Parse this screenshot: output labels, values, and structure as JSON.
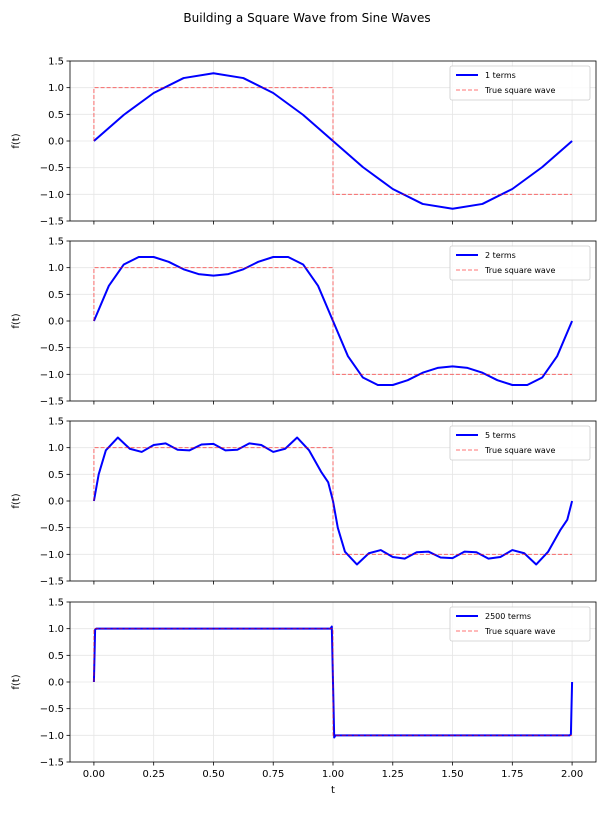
{
  "figure": {
    "title": "Building a Square Wave from Sine Waves"
  },
  "colors": {
    "approximation": "#0000ff",
    "square_wave": "#ff0000",
    "grid": "#e6e6e6",
    "axis": "#000000"
  },
  "chart_data": [
    {
      "type": "line",
      "terms": 1,
      "xlabel": "",
      "ylabel": "f(t)",
      "xlim": [
        -0.1,
        2.1
      ],
      "ylim": [
        -1.5,
        1.5
      ],
      "xticks": [
        0.0,
        0.25,
        0.5,
        0.75,
        1.0,
        1.25,
        1.5,
        1.75,
        2.0
      ],
      "xtick_labels": [
        "",
        "",
        "",
        "",
        "",
        "",
        "",
        "",
        ""
      ],
      "yticks": [
        -1.5,
        -1.0,
        -0.5,
        0.0,
        0.5,
        1.0,
        1.5
      ],
      "ytick_labels": [
        "−1.5",
        "−1.0",
        "−0.5",
        "0.0",
        "0.5",
        "1.0",
        "1.5"
      ],
      "grid": true,
      "legend_position": "top-right",
      "series": [
        {
          "name": "1 terms",
          "style": "solid",
          "color": "#0000ff",
          "x": [
            0.0,
            0.125,
            0.25,
            0.375,
            0.5,
            0.625,
            0.75,
            0.875,
            1.0,
            1.125,
            1.25,
            1.375,
            1.5,
            1.625,
            1.75,
            1.875,
            2.0
          ],
          "y": [
            0.0,
            0.49,
            0.9,
            1.18,
            1.27,
            1.18,
            0.9,
            0.49,
            0.0,
            -0.49,
            -0.9,
            -1.18,
            -1.27,
            -1.18,
            -0.9,
            -0.49,
            0.0
          ]
        },
        {
          "name": "True square wave",
          "style": "dashed",
          "color": "#ff0000",
          "x": [
            0.0,
            0.0,
            1.0,
            1.0,
            2.0
          ],
          "y": [
            0.0,
            1.0,
            1.0,
            -1.0,
            -1.0
          ]
        }
      ]
    },
    {
      "type": "line",
      "terms": 2,
      "xlabel": "",
      "ylabel": "f(t)",
      "xlim": [
        -0.1,
        2.1
      ],
      "ylim": [
        -1.5,
        1.5
      ],
      "xticks": [
        0.0,
        0.25,
        0.5,
        0.75,
        1.0,
        1.25,
        1.5,
        1.75,
        2.0
      ],
      "xtick_labels": [
        "",
        "",
        "",
        "",
        "",
        "",
        "",
        "",
        ""
      ],
      "yticks": [
        -1.5,
        -1.0,
        -0.5,
        0.0,
        0.5,
        1.0,
        1.5
      ],
      "ytick_labels": [
        "−1.5",
        "−1.0",
        "−0.5",
        "0.0",
        "0.5",
        "1.0",
        "1.5"
      ],
      "grid": true,
      "legend_position": "top-right",
      "series": [
        {
          "name": "2 terms",
          "style": "solid",
          "color": "#0000ff",
          "x": [
            0.0,
            0.0625,
            0.125,
            0.1875,
            0.25,
            0.3125,
            0.375,
            0.4375,
            0.5,
            0.5625,
            0.625,
            0.6875,
            0.75,
            0.8125,
            0.875,
            0.9375,
            1.0,
            1.0625,
            1.125,
            1.1875,
            1.25,
            1.3125,
            1.375,
            1.4375,
            1.5,
            1.5625,
            1.625,
            1.6875,
            1.75,
            1.8125,
            1.875,
            1.9375,
            2.0
          ],
          "y": [
            0.0,
            0.66,
            1.06,
            1.2,
            1.2,
            1.11,
            0.97,
            0.88,
            0.85,
            0.88,
            0.97,
            1.11,
            1.2,
            1.2,
            1.06,
            0.66,
            0.0,
            -0.66,
            -1.06,
            -1.2,
            -1.2,
            -1.11,
            -0.97,
            -0.88,
            -0.85,
            -0.88,
            -0.97,
            -1.11,
            -1.2,
            -1.2,
            -1.06,
            -0.66,
            0.0
          ]
        },
        {
          "name": "True square wave",
          "style": "dashed",
          "color": "#ff0000",
          "x": [
            0.0,
            0.0,
            1.0,
            1.0,
            2.0
          ],
          "y": [
            0.0,
            1.0,
            1.0,
            -1.0,
            -1.0
          ]
        }
      ]
    },
    {
      "type": "line",
      "terms": 5,
      "xlabel": "",
      "ylabel": "f(t)",
      "xlim": [
        -0.1,
        2.1
      ],
      "ylim": [
        -1.5,
        1.5
      ],
      "xticks": [
        0.0,
        0.25,
        0.5,
        0.75,
        1.0,
        1.25,
        1.5,
        1.75,
        2.0
      ],
      "xtick_labels": [
        "",
        "",
        "",
        "",
        "",
        "",
        "",
        "",
        ""
      ],
      "yticks": [
        -1.5,
        -1.0,
        -0.5,
        0.0,
        0.5,
        1.0,
        1.5
      ],
      "ytick_labels": [
        "−1.5",
        "−1.0",
        "−0.5",
        "0.0",
        "0.5",
        "1.0",
        "1.5"
      ],
      "grid": true,
      "legend_position": "top-right",
      "series": [
        {
          "name": "5 terms",
          "style": "solid",
          "color": "#0000ff",
          "x": [
            0.0,
            0.02,
            0.05,
            0.1,
            0.15,
            0.2,
            0.25,
            0.3,
            0.35,
            0.4,
            0.45,
            0.5,
            0.55,
            0.6,
            0.65,
            0.7,
            0.75,
            0.8,
            0.85,
            0.9,
            0.95,
            0.98,
            1.0,
            1.02,
            1.05,
            1.1,
            1.15,
            1.2,
            1.25,
            1.3,
            1.35,
            1.4,
            1.45,
            1.5,
            1.55,
            1.6,
            1.65,
            1.7,
            1.75,
            1.8,
            1.85,
            1.9,
            1.95,
            1.98,
            2.0
          ],
          "y": [
            0.0,
            0.5,
            0.95,
            1.19,
            0.98,
            0.92,
            1.05,
            1.08,
            0.96,
            0.95,
            1.06,
            1.07,
            0.95,
            0.96,
            1.08,
            1.05,
            0.92,
            0.98,
            1.19,
            0.95,
            0.55,
            0.35,
            0.0,
            -0.5,
            -0.95,
            -1.19,
            -0.98,
            -0.92,
            -1.05,
            -1.08,
            -0.96,
            -0.95,
            -1.06,
            -1.07,
            -0.95,
            -0.96,
            -1.08,
            -1.05,
            -0.92,
            -0.98,
            -1.19,
            -0.95,
            -0.55,
            -0.35,
            0.0
          ]
        },
        {
          "name": "True square wave",
          "style": "dashed",
          "color": "#ff0000",
          "x": [
            0.0,
            0.0,
            1.0,
            1.0,
            2.0
          ],
          "y": [
            0.0,
            1.0,
            1.0,
            -1.0,
            -1.0
          ]
        }
      ]
    },
    {
      "type": "line",
      "terms": 2500,
      "xlabel": "t",
      "ylabel": "f(t)",
      "xlim": [
        -0.1,
        2.1
      ],
      "ylim": [
        -1.5,
        1.5
      ],
      "xticks": [
        0.0,
        0.25,
        0.5,
        0.75,
        1.0,
        1.25,
        1.5,
        1.75,
        2.0
      ],
      "xtick_labels": [
        "0.00",
        "0.25",
        "0.50",
        "0.75",
        "1.00",
        "1.25",
        "1.50",
        "1.75",
        "2.00"
      ],
      "yticks": [
        -1.5,
        -1.0,
        -0.5,
        0.0,
        0.5,
        1.0,
        1.5
      ],
      "ytick_labels": [
        "−1.5",
        "−1.0",
        "−0.5",
        "0.0",
        "0.5",
        "1.0",
        "1.5"
      ],
      "grid": true,
      "legend_position": "top-right",
      "series": [
        {
          "name": "2500 terms",
          "style": "solid",
          "color": "#0000ff",
          "x": [
            0.0,
            0.005,
            0.01,
            0.5,
            0.99,
            0.995,
            1.0,
            1.005,
            1.01,
            1.5,
            1.99,
            1.995,
            2.0
          ],
          "y": [
            0.0,
            0.98,
            1.0,
            1.0,
            1.0,
            1.04,
            0.0,
            -1.04,
            -1.0,
            -1.0,
            -1.0,
            -0.98,
            0.0
          ]
        },
        {
          "name": "True square wave",
          "style": "dashed",
          "color": "#ff0000",
          "x": [
            0.0,
            0.0,
            1.0,
            1.0,
            2.0
          ],
          "y": [
            0.0,
            1.0,
            1.0,
            -1.0,
            -1.0
          ]
        }
      ]
    }
  ]
}
